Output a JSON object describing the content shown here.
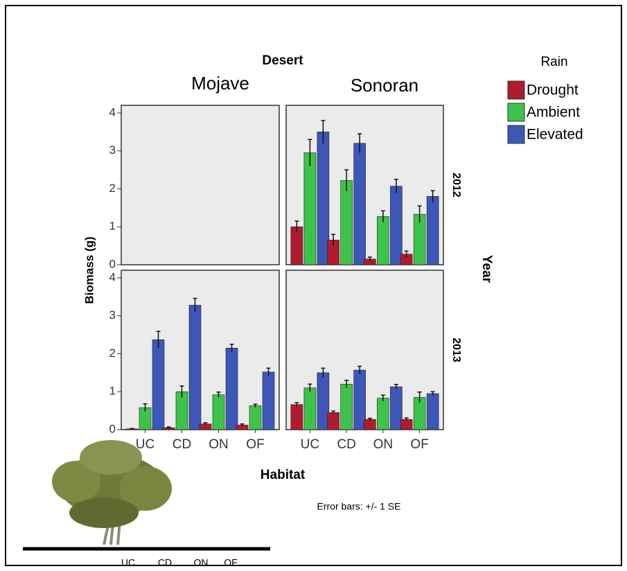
{
  "figure": {
    "column_title": "Desert",
    "columns": [
      "Mojave",
      "Sonoran"
    ],
    "row_title": "Year",
    "rows": [
      "2012",
      "2013"
    ],
    "x_label": "Habitat",
    "y_label": "Biomass (g)",
    "legend_title": "Rain",
    "note": "Error bars: +/- 1 SE",
    "sketch_labels": [
      "UC",
      "CD",
      "ON",
      "OF"
    ]
  },
  "chart_data": [
    {
      "type": "bar",
      "ylim": [
        0,
        4.2
      ],
      "yticks": [
        0,
        1,
        2,
        3,
        4
      ]
    },
    {
      "type": "bar",
      "ylim": [
        0,
        4.2
      ],
      "series": [
        {
          "name": "Drought",
          "color": "#b01c2e",
          "values": [
            1.0,
            0.65,
            0.15,
            0.28
          ],
          "errors": [
            0.15,
            0.15,
            0.05,
            0.08
          ]
        },
        {
          "name": "Ambient",
          "color": "#3ec34a",
          "values": [
            2.95,
            2.22,
            1.27,
            1.33
          ],
          "errors": [
            0.35,
            0.28,
            0.15,
            0.22
          ]
        },
        {
          "name": "Elevated",
          "color": "#3c57b8",
          "values": [
            3.5,
            3.2,
            2.07,
            1.8
          ],
          "errors": [
            0.3,
            0.25,
            0.18,
            0.15
          ]
        }
      ]
    },
    {
      "type": "bar",
      "ylim": [
        0,
        4.2
      ],
      "yticks": [
        0,
        1,
        2,
        3,
        4
      ],
      "categories": [
        "UC",
        "CD",
        "ON",
        "OF"
      ],
      "series": [
        {
          "color": "#b01c2e",
          "values": [
            0.02,
            0.05,
            0.15,
            0.12
          ],
          "errors": [
            0.01,
            0.02,
            0.03,
            0.03
          ]
        },
        {
          "color": "#3ec34a",
          "values": [
            0.58,
            1.0,
            0.92,
            0.63
          ],
          "errors": [
            0.1,
            0.15,
            0.07,
            0.04
          ]
        },
        {
          "color": "#3c57b8",
          "values": [
            2.37,
            3.28,
            2.15,
            1.52
          ],
          "errors": [
            0.22,
            0.18,
            0.1,
            0.1
          ]
        }
      ]
    },
    {
      "type": "bar",
      "ylim": [
        0,
        4.2
      ],
      "categories": [
        "UC",
        "CD",
        "ON",
        "OF"
      ],
      "series": [
        {
          "color": "#b01c2e",
          "values": [
            0.66,
            0.45,
            0.27,
            0.27
          ],
          "errors": [
            0.05,
            0.04,
            0.03,
            0.04
          ]
        },
        {
          "color": "#3ec34a",
          "values": [
            1.1,
            1.2,
            0.83,
            0.85
          ],
          "errors": [
            0.1,
            0.1,
            0.08,
            0.14
          ]
        },
        {
          "color": "#3c57b8",
          "values": [
            1.5,
            1.57,
            1.13,
            0.95
          ],
          "errors": [
            0.12,
            0.1,
            0.06,
            0.05
          ]
        }
      ]
    }
  ]
}
